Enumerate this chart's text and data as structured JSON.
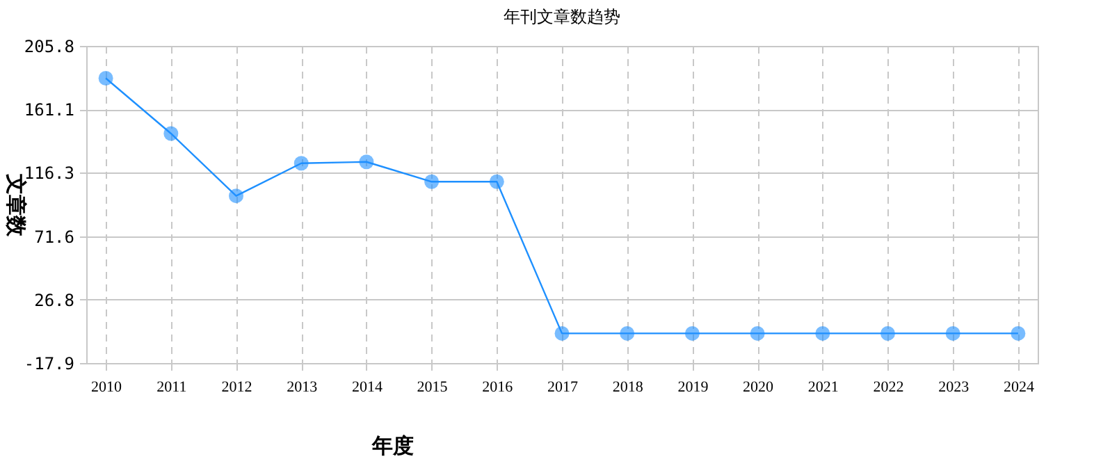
{
  "chart_data": {
    "type": "line",
    "title": "年刊文章数趋势",
    "xlabel": "年度",
    "ylabel": "文章数",
    "categories": [
      "2010",
      "2011",
      "2012",
      "2013",
      "2014",
      "2015",
      "2016",
      "2017",
      "2018",
      "2019",
      "2020",
      "2021",
      "2022",
      "2023",
      "2024"
    ],
    "series": [
      {
        "color": "#1e90ff",
        "values": [
          183,
          144,
          100,
          123,
          124,
          110,
          110,
          3,
          3,
          3,
          3,
          3,
          3,
          3,
          3
        ]
      }
    ],
    "ylim": [
      -17.9,
      205.8
    ],
    "yticks": [
      -17.9,
      26.8,
      71.6,
      116.3,
      161.1,
      205.8
    ],
    "grid": true,
    "marker": "circle",
    "line_style": "solid",
    "legend": false
  }
}
